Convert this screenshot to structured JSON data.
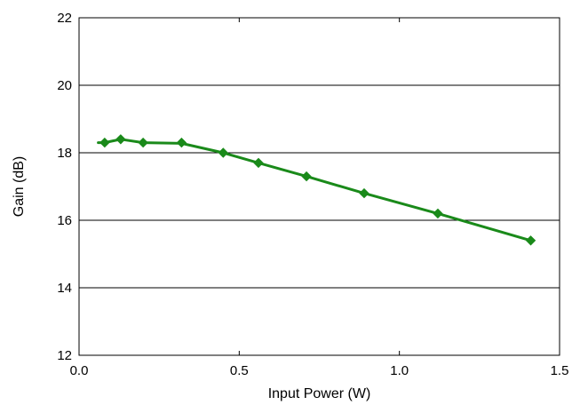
{
  "chart_data": {
    "type": "line",
    "title": "",
    "xlabel": "Input Power (W)",
    "ylabel": "Gain (dB)",
    "xlim": [
      0.0,
      1.5
    ],
    "ylim": [
      12,
      22
    ],
    "x_ticks": [
      0.0,
      0.5,
      1.0,
      1.5
    ],
    "x_tick_labels": [
      "0.0",
      "0.5",
      "1.0",
      "1.5"
    ],
    "y_ticks": [
      12,
      14,
      16,
      18,
      20,
      22
    ],
    "y_tick_labels": [
      "12",
      "14",
      "16",
      "18",
      "20",
      "22"
    ],
    "grid": "horizontal",
    "legend": "none",
    "colors": {
      "series": "#1a8a1a",
      "frame": "#000000",
      "grid": "#000000"
    },
    "series": [
      {
        "marker": "diamond",
        "points": [
          {
            "x": 0.08,
            "y": 18.3
          },
          {
            "x": 0.13,
            "y": 18.4
          },
          {
            "x": 0.2,
            "y": 18.3
          },
          {
            "x": 0.32,
            "y": 18.3
          },
          {
            "x": 0.45,
            "y": 18.0
          },
          {
            "x": 0.56,
            "y": 17.7
          },
          {
            "x": 0.71,
            "y": 17.3
          },
          {
            "x": 0.89,
            "y": 16.8
          },
          {
            "x": 1.12,
            "y": 16.2
          },
          {
            "x": 1.41,
            "y": 15.4
          }
        ],
        "curve": [
          {
            "x": 0.06,
            "y": 18.3
          },
          {
            "x": 0.08,
            "y": 18.3
          },
          {
            "x": 0.13,
            "y": 18.4
          },
          {
            "x": 0.2,
            "y": 18.3
          },
          {
            "x": 0.32,
            "y": 18.28
          },
          {
            "x": 0.45,
            "y": 18.0
          },
          {
            "x": 0.56,
            "y": 17.7
          },
          {
            "x": 0.71,
            "y": 17.3
          },
          {
            "x": 0.89,
            "y": 16.8
          },
          {
            "x": 1.12,
            "y": 16.2
          },
          {
            "x": 1.41,
            "y": 15.4
          }
        ]
      }
    ]
  }
}
